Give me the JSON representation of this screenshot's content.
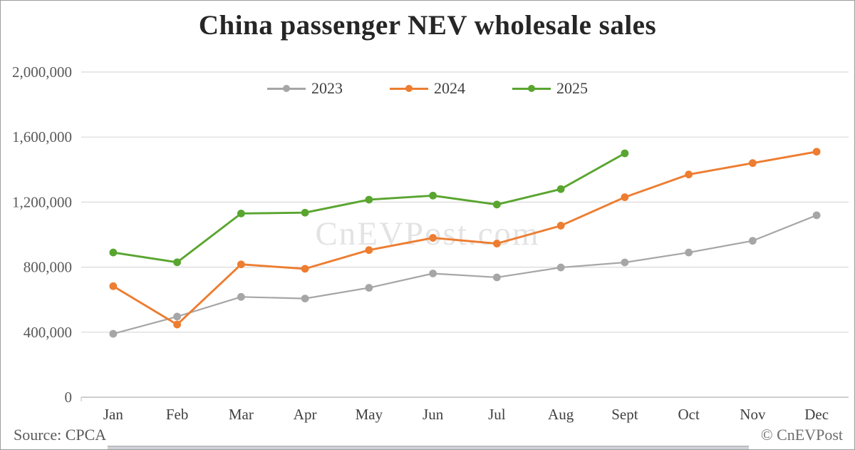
{
  "page": {
    "title": "China passenger NEV wholesale sales",
    "watermark": "CnEVPost.com",
    "source": "Source: CPCA",
    "credit": "© CnEVPost"
  },
  "colors": {
    "gridline": "#d9d9d9",
    "axis_line": "#bfbfbf",
    "tick_label": "#595959",
    "month_label": "#404040"
  },
  "chart_data": {
    "type": "line",
    "title": "China passenger NEV wholesale sales",
    "categories": [
      "Jan",
      "Feb",
      "Mar",
      "Apr",
      "May",
      "Jun",
      "Jul",
      "Aug",
      "Sept",
      "Oct",
      "Nov",
      "Dec"
    ],
    "xlabel": "",
    "ylabel": "",
    "ylim": [
      0,
      2000000
    ],
    "ytick_step": 400000,
    "grid": true,
    "legend_position": "top-center",
    "series": [
      {
        "name": "2023",
        "color": "#A6A6A6",
        "values": [
          390000,
          496000,
          617000,
          607000,
          673000,
          761000,
          737000,
          798000,
          829000,
          890000,
          962000,
          1119000
        ]
      },
      {
        "name": "2024",
        "color": "#ED7D31",
        "values": [
          683000,
          447000,
          817000,
          790000,
          905000,
          980000,
          945000,
          1055000,
          1230000,
          1370000,
          1440000,
          1510000
        ]
      },
      {
        "name": "2025",
        "color": "#59A52F",
        "values": [
          890000,
          830000,
          1130000,
          1135000,
          1215000,
          1240000,
          1185000,
          1280000,
          1500000
        ]
      }
    ]
  }
}
